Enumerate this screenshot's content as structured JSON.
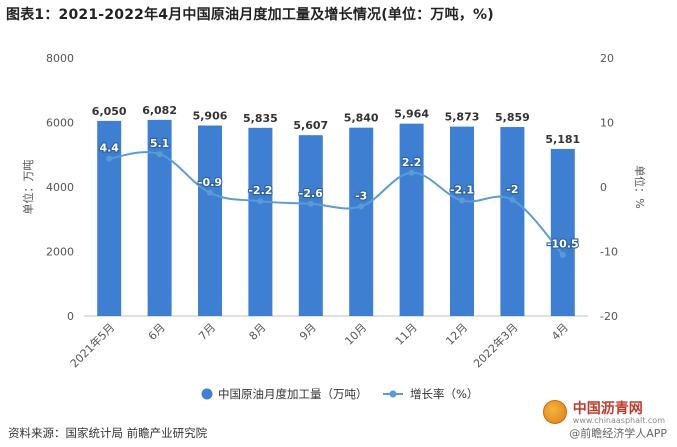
{
  "title": "图表1：2021-2022年4月中国原油月度加工量及增长情况(单位：万吨，%)",
  "footer": {
    "source": "资料来源：国家统计局 前瞻产业研究院",
    "credit": "@前瞻经济学人APP",
    "brand_name": "中国沥青网",
    "brand_url": "www.chinaasphalt.com"
  },
  "colors": {
    "bar": "#3f7fd1",
    "line": "#5b9bd5",
    "axis_text": "#555555",
    "grid": "#e3e3e3"
  },
  "chart_data": {
    "type": "bar",
    "categories": [
      "2021年5月",
      "6月",
      "7月",
      "8月",
      "9月",
      "10月",
      "11月",
      "12月",
      "2022年3月",
      "4月"
    ],
    "series": [
      {
        "name": "中国原油月度加工量（万吨）",
        "type": "bar",
        "axis": "left",
        "values": [
          6050,
          6082,
          5906,
          5835,
          5607,
          5840,
          5964,
          5873,
          5859,
          5181
        ],
        "labels": [
          "6,050",
          "6,082",
          "5,906",
          "5,835",
          "5,607",
          "5,840",
          "5,964",
          "5,873",
          "5,859",
          "5,181"
        ]
      },
      {
        "name": "增长率（%）",
        "type": "line",
        "axis": "right",
        "values": [
          4.4,
          5.1,
          -0.9,
          -2.2,
          -2.6,
          -3,
          2.2,
          -2.1,
          -2,
          -10.5
        ],
        "labels": [
          "4.4",
          "5.1",
          "-0.9",
          "-2.2",
          "-2.6",
          "-3",
          "2.2",
          "-2.1",
          "-2",
          "-10.5"
        ]
      }
    ],
    "ylabel": "单位：万吨",
    "y2label": "单位：%",
    "ylim": [
      0,
      8000
    ],
    "y2lim": [
      -20,
      20
    ],
    "yticks": [
      0,
      2000,
      4000,
      6000,
      8000
    ],
    "y2ticks": [
      -20,
      -10,
      0,
      10,
      20
    ],
    "grid": false,
    "legend": "bottom-center"
  }
}
